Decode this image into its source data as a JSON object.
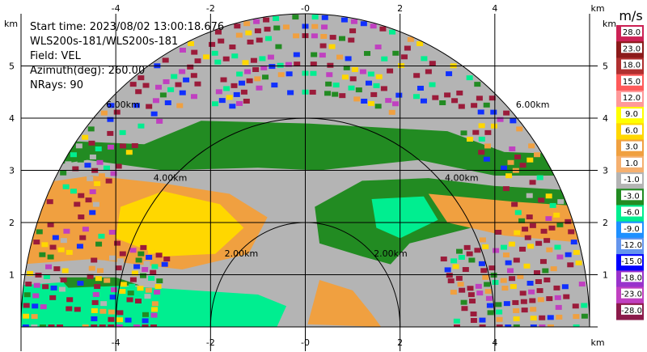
{
  "info": {
    "start_time": "Start time: 2023/08/02 13:00:18.676",
    "instrument": "WLS200s-181/WLS200s-181",
    "field": "Field: VEL",
    "azimuth": "Azimuth(deg): 260.00",
    "nrays": "NRays: 90"
  },
  "colors": {
    "grey": "#b4b4b4",
    "green": "#228b22",
    "spring_green": "#00ee90",
    "orange": "#f0a040",
    "yellow": "#ffd700",
    "dark_red": "#9b1b3a",
    "magenta": "#c040c0",
    "blue": "#1030ff"
  },
  "chart_data": {
    "type": "heatmap",
    "subtype": "ppi-sector",
    "field": "VEL",
    "x_unit_label": "km",
    "y_unit_label": "km",
    "xlim": [
      -6,
      6
    ],
    "ylim": [
      0,
      6
    ],
    "x_ticks": [
      "-4",
      "-2",
      "-0",
      "2",
      "4"
    ],
    "x_tick_values": [
      -4,
      -2,
      0,
      2,
      4
    ],
    "y_ticks": [
      "1",
      "2",
      "3",
      "4",
      "5"
    ],
    "y_tick_values": [
      1,
      2,
      3,
      4,
      5
    ],
    "grid": true,
    "max_range_km": 6,
    "range_rings": [
      {
        "label": "2.00km",
        "radius_km": 2
      },
      {
        "label": "4.00km",
        "radius_km": 4
      },
      {
        "label": "6.00km",
        "radius_km": 6
      }
    ],
    "colorbar": {
      "unit": "m/s",
      "ticks": [
        "28.0",
        "23.0",
        "18.0",
        "15.0",
        "12.0",
        "9.0",
        "6.0",
        "3.0",
        "1.0",
        "-1.0",
        "-3.0",
        "-6.0",
        "-9.0",
        "-12.0",
        "-15.0",
        "-18.0",
        "-23.0",
        "-28.0"
      ],
      "segments": [
        {
          "from": 23,
          "to": 28,
          "color": "#cc2255"
        },
        {
          "from": 18,
          "to": 23,
          "color": "#8b1a1a"
        },
        {
          "from": 15,
          "to": 18,
          "color": "#b03030"
        },
        {
          "from": 12,
          "to": 15,
          "color": "#ff5a5a"
        },
        {
          "from": 9,
          "to": 12,
          "color": "#ff9999"
        },
        {
          "from": 6,
          "to": 9,
          "color": "#ffff00"
        },
        {
          "from": 3,
          "to": 6,
          "color": "#ffd700"
        },
        {
          "from": 1,
          "to": 3,
          "color": "#f0a040"
        },
        {
          "from": -1,
          "to": 1,
          "color": "#f5b070"
        },
        {
          "from": -3,
          "to": -1,
          "color": "#b4b4b4"
        },
        {
          "from": -6,
          "to": -3,
          "color": "#228b22"
        },
        {
          "from": -9,
          "to": -6,
          "color": "#00ee90"
        },
        {
          "from": -12,
          "to": -9,
          "color": "#1e90ff"
        },
        {
          "from": -15,
          "to": -12,
          "color": "#6495ed"
        },
        {
          "from": -18,
          "to": -15,
          "color": "#0000ff"
        },
        {
          "from": -23,
          "to": -18,
          "color": "#9932cc"
        },
        {
          "from": -28,
          "to": -23,
          "color": "#c040c0"
        },
        {
          "from": -33,
          "to": -28,
          "color": "#8b1a4a"
        }
      ]
    }
  }
}
